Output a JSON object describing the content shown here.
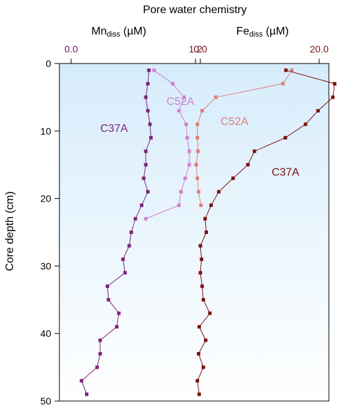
{
  "chart_data": {
    "type": "line",
    "title": "Pore water chemistry",
    "ylabel": "Core depth (cm)",
    "y_axis": {
      "ylim": [
        0,
        50
      ],
      "inverted": true,
      "ticks": [
        0,
        10,
        20,
        30,
        40,
        50
      ],
      "tick_labels": [
        "0",
        "10",
        "20",
        "30",
        "40",
        "50"
      ]
    },
    "mn_axis": {
      "label_base": "Mn",
      "label_sub": "diss",
      "label_unit": " (µM)",
      "xlim": [
        0.0,
        1.2
      ],
      "ticks": [
        0.0,
        1.2
      ],
      "tick_labels": [
        "0.0",
        "1.2"
      ],
      "color": "#6b1466"
    },
    "fe_axis": {
      "label_base": "Fe",
      "label_sub": "diss",
      "label_unit": " (µM)",
      "xlim": [
        0.0,
        20.0
      ],
      "ticks": [
        0.0,
        20.0
      ],
      "tick_labels": [
        "0.0",
        "20.0"
      ],
      "color": "#7a1212"
    },
    "background_gradient": [
      "#d6ecfb",
      "#ffffff"
    ],
    "series": [
      {
        "name": "C37A",
        "analyte": "Mn",
        "color": "#7b2479",
        "label_anchor": [
          0.28,
          9.5
        ],
        "points": [
          [
            0.75,
            1
          ],
          [
            0.74,
            3
          ],
          [
            0.72,
            5
          ],
          [
            0.74,
            7
          ],
          [
            0.76,
            9
          ],
          [
            0.77,
            11
          ],
          [
            0.72,
            13
          ],
          [
            0.72,
            15
          ],
          [
            0.7,
            17
          ],
          [
            0.74,
            19
          ],
          [
            0.68,
            21
          ],
          [
            0.62,
            23
          ],
          [
            0.58,
            25
          ],
          [
            0.56,
            27
          ],
          [
            0.5,
            29
          ],
          [
            0.52,
            31
          ],
          [
            0.35,
            33
          ],
          [
            0.36,
            35
          ],
          [
            0.46,
            37
          ],
          [
            0.44,
            39
          ],
          [
            0.28,
            41
          ],
          [
            0.28,
            43
          ],
          [
            0.25,
            45
          ],
          [
            0.1,
            47
          ],
          [
            0.15,
            49
          ]
        ]
      },
      {
        "name": "C52A",
        "analyte": "Mn",
        "color": "#d27ed0",
        "label_anchor": [
          0.92,
          5.5
        ],
        "points": [
          [
            0.8,
            1
          ],
          [
            0.98,
            3
          ],
          [
            1.09,
            5
          ],
          [
            1.04,
            7
          ],
          [
            1.11,
            9
          ],
          [
            1.12,
            11
          ],
          [
            1.14,
            13
          ],
          [
            1.14,
            15
          ],
          [
            1.1,
            17
          ],
          [
            1.06,
            19
          ],
          [
            1.04,
            21
          ],
          [
            0.72,
            23
          ]
        ]
      },
      {
        "name": "C52A",
        "analyte": "Fe",
        "color": "#e07e79",
        "label_anchor": [
          3.4,
          8.5
        ],
        "points": [
          [
            15.4,
            1
          ],
          [
            13.9,
            3
          ],
          [
            2.6,
            5
          ],
          [
            0.3,
            7
          ],
          [
            -0.5,
            9
          ],
          [
            -0.5,
            11
          ],
          [
            -0.4,
            13
          ],
          [
            -0.7,
            15
          ],
          [
            -0.5,
            17
          ],
          [
            -0.3,
            19
          ],
          [
            0.1,
            21
          ]
        ]
      },
      {
        "name": "C37A",
        "analyte": "Fe",
        "color": "#7a1212",
        "label_anchor": [
          12.0,
          16.0
        ],
        "points": [
          [
            14.4,
            1
          ],
          [
            22.6,
            3
          ],
          [
            22.3,
            5
          ],
          [
            19.8,
            7
          ],
          [
            17.7,
            9
          ],
          [
            14.3,
            11
          ],
          [
            9.1,
            13
          ],
          [
            8.0,
            15
          ],
          [
            5.5,
            17
          ],
          [
            3.1,
            19
          ],
          [
            1.8,
            21
          ],
          [
            0.8,
            23
          ],
          [
            1.0,
            25
          ],
          [
            0.0,
            27
          ],
          [
            0.2,
            29
          ],
          [
            0.0,
            31
          ],
          [
            0.3,
            33
          ],
          [
            0.5,
            35
          ],
          [
            1.6,
            37
          ],
          [
            -0.2,
            39
          ],
          [
            0.9,
            41
          ],
          [
            -0.3,
            43
          ],
          [
            0.5,
            45
          ],
          [
            -0.5,
            47
          ],
          [
            -0.2,
            49
          ]
        ]
      }
    ]
  }
}
